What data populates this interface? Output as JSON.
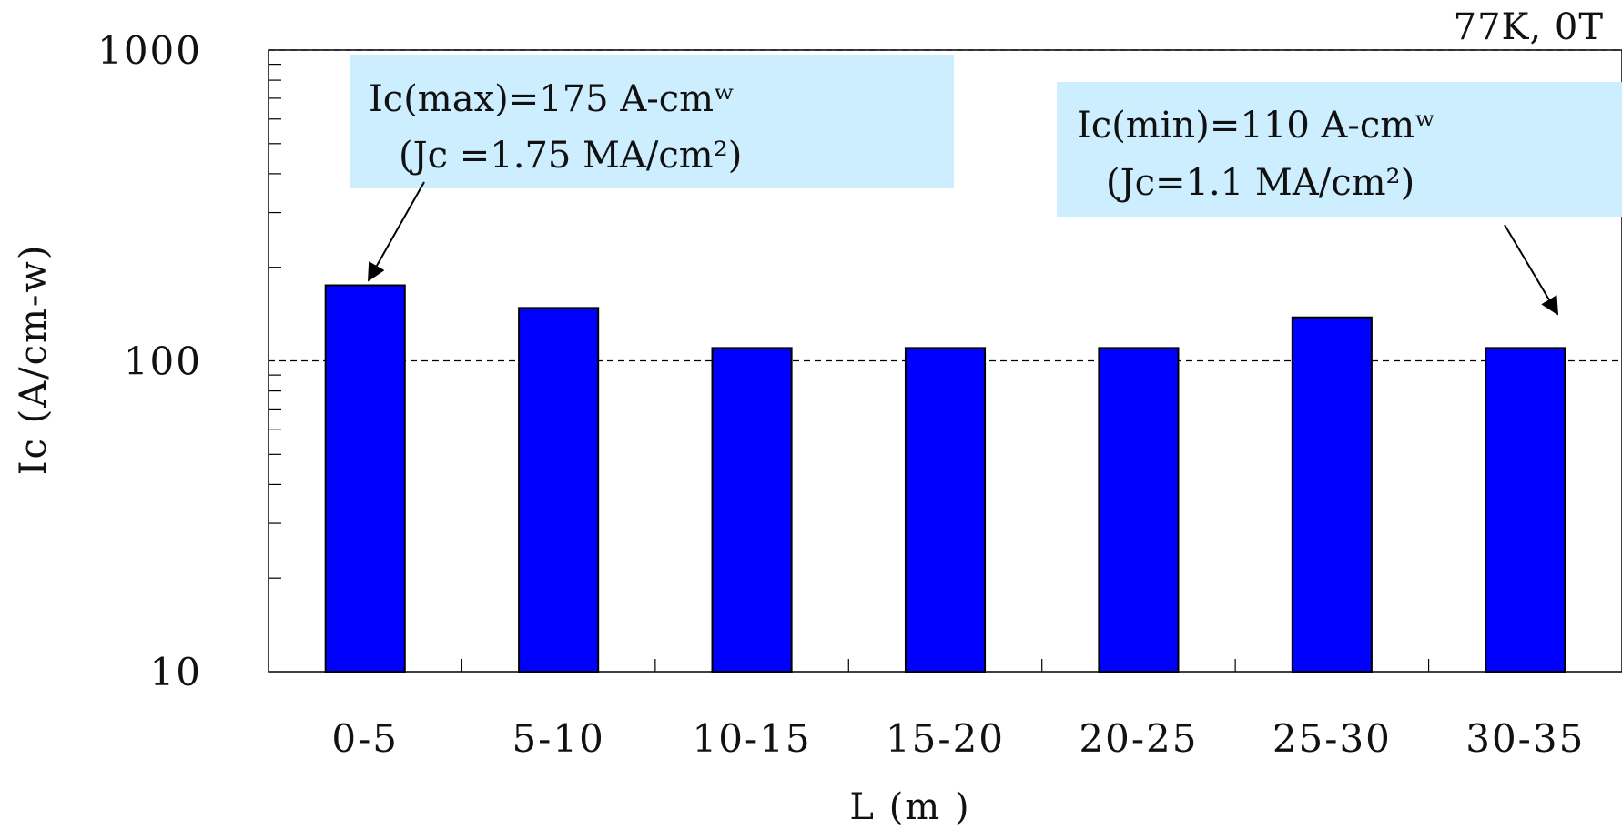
{
  "chart_data": {
    "type": "bar",
    "scale_y": "log",
    "ylim": [
      10,
      1000
    ],
    "yticks": [
      {
        "value": 10,
        "label": "10"
      },
      {
        "value": 100,
        "label": "100"
      },
      {
        "value": 1000,
        "label": "1000"
      }
    ],
    "categories": [
      "0-5",
      "5-10",
      "10-15",
      "15-20",
      "20-25",
      "25-30",
      "30-35"
    ],
    "values": [
      175,
      148,
      110,
      110,
      110,
      138,
      110
    ],
    "xlabel": "L (m )",
    "ylabel": "Ic (A/cm-w)",
    "condition": "77K, 0T",
    "grid": "dashed horizontal lines at 100 and 1000",
    "bar_color": "#0000ff",
    "annotations": [
      {
        "name": "max",
        "line1": "Ic(max)=175 A-cmʷ",
        "line2": "(Jc =1.75 MA/cm²)",
        "points_to_category": "0-5",
        "box_color": "#cceeff"
      },
      {
        "name": "min",
        "line1": "Ic(min)=110 A-cmʷ",
        "line2": "(Jc=1.1 MA/cm²)",
        "points_to_category": "30-35",
        "box_color": "#cceeff"
      }
    ]
  }
}
